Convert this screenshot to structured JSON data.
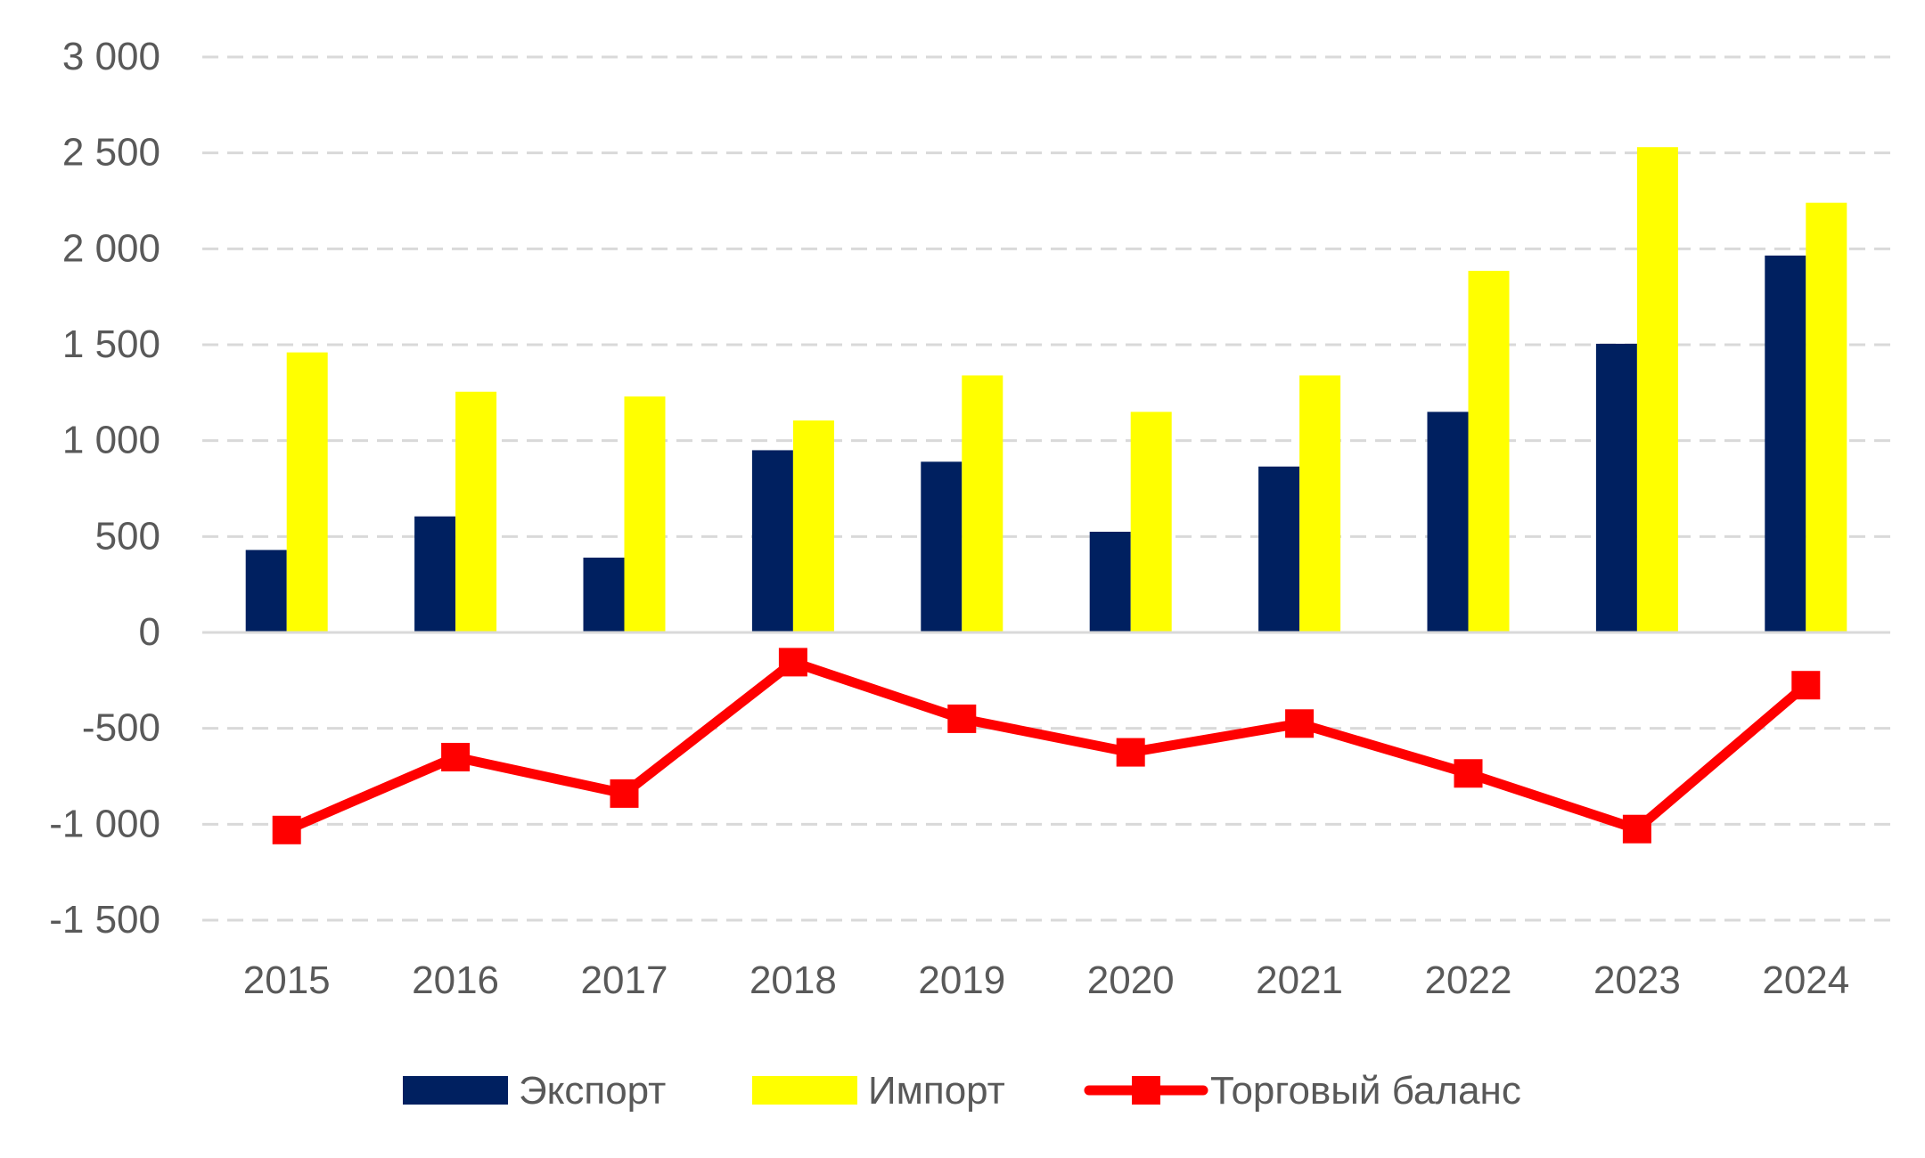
{
  "chart_data": {
    "type": "bar",
    "title": "",
    "xlabel": "",
    "ylabel": "",
    "categories": [
      "2015",
      "2016",
      "2017",
      "2018",
      "2019",
      "2020",
      "2021",
      "2022",
      "2023",
      "2024"
    ],
    "ylim": [
      -1500,
      3000
    ],
    "yticks": [
      3000,
      2500,
      2000,
      1500,
      1000,
      500,
      0,
      -500,
      -1000,
      -1500
    ],
    "ytick_labels": [
      "3 000",
      "2 500",
      "2 000",
      "1 500",
      "1 000",
      "500",
      "0",
      "-500",
      "-1 000",
      "-1 500"
    ],
    "grid": true,
    "legend_position": "bottom",
    "series": [
      {
        "name": "Экспорт",
        "type": "bar",
        "color": "#002060",
        "values": [
          430,
          605,
          390,
          950,
          890,
          525,
          865,
          1150,
          1505,
          1965
        ]
      },
      {
        "name": "Импорт",
        "type": "bar",
        "color": "#FFFF00",
        "values": [
          1460,
          1255,
          1230,
          1105,
          1340,
          1150,
          1340,
          1885,
          2530,
          2240
        ]
      },
      {
        "name": "Торговый баланс",
        "type": "line",
        "marker": "square",
        "color": "#FF0000",
        "values": [
          -1030,
          -650,
          -840,
          -155,
          -450,
          -625,
          -475,
          -735,
          -1025,
          -275
        ]
      }
    ]
  }
}
